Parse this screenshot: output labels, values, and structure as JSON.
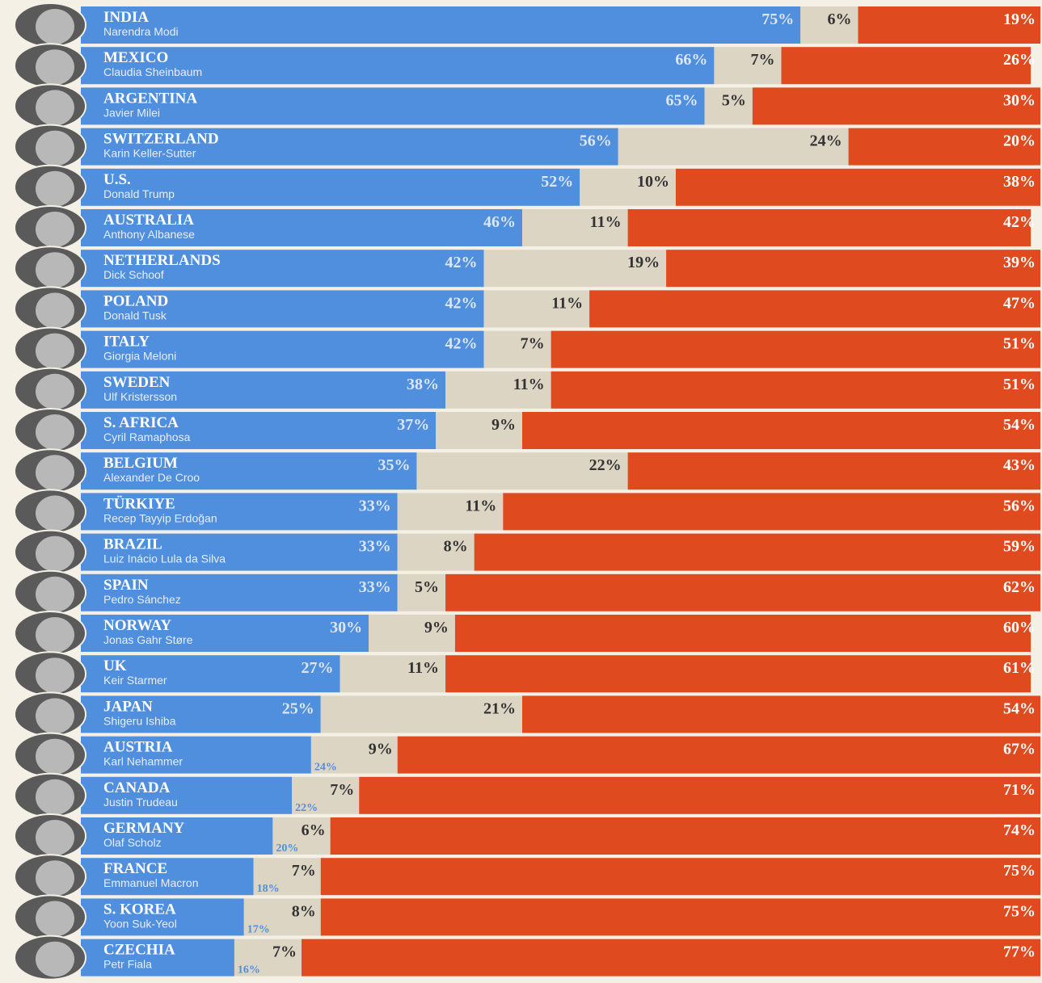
{
  "chart_data": {
    "type": "bar",
    "orientation": "horizontal",
    "stacked": true,
    "xlim": [
      0,
      100
    ],
    "categories": [
      "INDIA",
      "MEXICO",
      "ARGENTINA",
      "SWITZERLAND",
      "U.S.",
      "AUSTRALIA",
      "NETHERLANDS",
      "POLAND",
      "ITALY",
      "SWEDEN",
      "S. AFRICA",
      "BELGIUM",
      "TÜRKIYE",
      "BRAZIL",
      "SPAIN",
      "NORWAY",
      "UK",
      "JAPAN",
      "AUSTRIA",
      "CANADA",
      "GERMANY",
      "FRANCE",
      "S. KOREA",
      "CZECHIA"
    ],
    "leaders": [
      "Narendra Modi",
      "Claudia Sheinbaum",
      "Javier Milei",
      "Karin Keller-Sutter",
      "Donald Trump",
      "Anthony Albanese",
      "Dick Schoof",
      "Donald Tusk",
      "Giorgia Meloni",
      "Ulf Kristersson",
      "Cyril Ramaphosa",
      "Alexander De Croo",
      "Recep Tayyip Erdoğan",
      "Luiz Inácio Lula da Silva",
      "Pedro Sánchez",
      "Jonas Gahr Støre",
      "Keir Starmer",
      "Shigeru Ishiba",
      "Karl Nehammer",
      "Justin Trudeau",
      "Olaf Scholz",
      "Emmanuel Macron",
      "Yoon Suk-Yeol",
      "Petr Fiala"
    ],
    "series": [
      {
        "color": "#4f8fde",
        "values": [
          75,
          66,
          65,
          56,
          52,
          46,
          42,
          42,
          42,
          38,
          37,
          35,
          33,
          33,
          33,
          30,
          27,
          25,
          24,
          22,
          20,
          18,
          17,
          16
        ],
        "value_labels": [
          "75%",
          "66%",
          "65%",
          "56%",
          "52%",
          "46%",
          "42%",
          "42%",
          "42%",
          "38%",
          "37%",
          "35%",
          "33%",
          "33%",
          "33%",
          "30%",
          "27%",
          "25%",
          "24%",
          "22%",
          "20%",
          "18%",
          "17%",
          "16%"
        ]
      },
      {
        "color": "#ddd5c3",
        "values": [
          6,
          7,
          5,
          24,
          10,
          11,
          19,
          11,
          7,
          11,
          9,
          22,
          11,
          8,
          5,
          9,
          11,
          21,
          9,
          7,
          6,
          7,
          8,
          7
        ],
        "value_labels": [
          "6%",
          "7%",
          "5%",
          "24%",
          "10%",
          "11%",
          "19%",
          "11%",
          "7%",
          "11%",
          "9%",
          "22%",
          "11%",
          "8%",
          "5%",
          "9%",
          "11%",
          "21%",
          "9%",
          "7%",
          "6%",
          "7%",
          "8%",
          "7%"
        ]
      },
      {
        "color": "#e04a1f",
        "values": [
          19,
          26,
          30,
          20,
          38,
          42,
          39,
          47,
          51,
          51,
          54,
          43,
          56,
          59,
          62,
          60,
          61,
          54,
          67,
          71,
          74,
          75,
          75,
          77
        ],
        "value_labels": [
          "19%",
          "26%",
          "30%",
          "20%",
          "38%",
          "42%",
          "39%",
          "47%",
          "51%",
          "51%",
          "54%",
          "43%",
          "56%",
          "59%",
          "62%",
          "60%",
          "61%",
          "54%",
          "67%",
          "71%",
          "74%",
          "75%",
          "75%",
          "77%"
        ]
      }
    ]
  }
}
